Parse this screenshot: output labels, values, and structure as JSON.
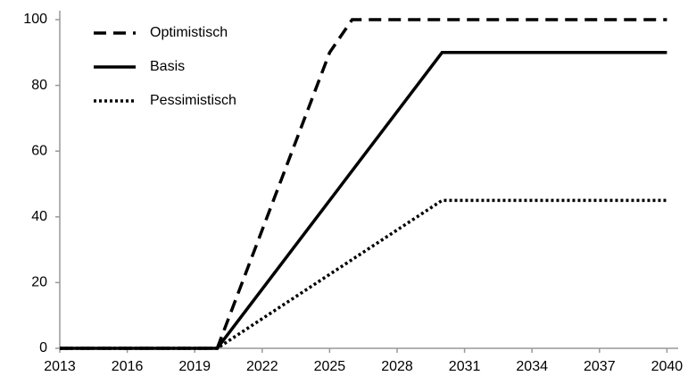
{
  "chart_data": {
    "type": "line",
    "xlim": [
      2013,
      2040.5
    ],
    "xticks": [
      2013,
      2016,
      2019,
      2022,
      2025,
      2028,
      2031,
      2034,
      2037,
      2040
    ],
    "ylim": [
      0,
      100
    ],
    "yticks": [
      0,
      20,
      40,
      60,
      80,
      100
    ],
    "legend": "top-left",
    "series": [
      {
        "name": "Optimistisch",
        "color": "#000000",
        "dash": "dashed",
        "x": [
          2013,
          2020,
          2025,
          2026,
          2040
        ],
        "values": [
          0,
          0,
          90,
          100,
          100
        ]
      },
      {
        "name": "Basis",
        "color": "#000000",
        "dash": "solid",
        "x": [
          2013,
          2020,
          2030,
          2040
        ],
        "values": [
          0,
          0,
          90,
          90
        ]
      },
      {
        "name": "Pessimistisch",
        "color": "#000000",
        "dash": "dotted",
        "x": [
          2013,
          2020,
          2030,
          2040
        ],
        "values": [
          0,
          0,
          45,
          45
        ]
      }
    ]
  }
}
